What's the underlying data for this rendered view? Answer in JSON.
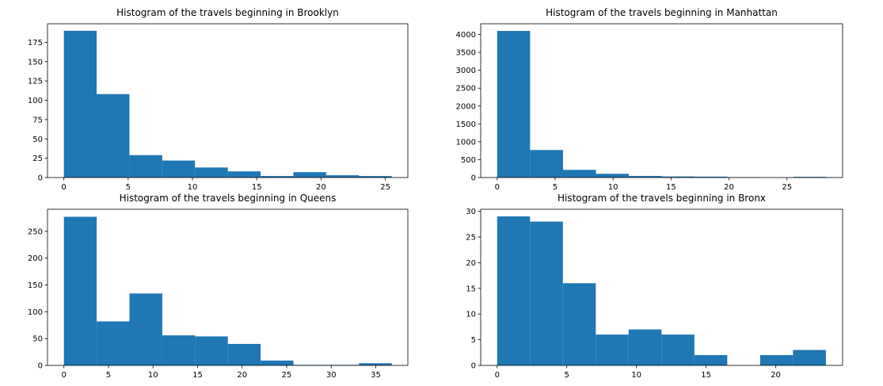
{
  "chart_data": [
    {
      "type": "bar",
      "title": "Histogram of the travels beginning in Brooklyn",
      "xlabel": "",
      "ylabel": "",
      "xlim": [
        -1.27,
        26.75
      ],
      "ylim": [
        0,
        199
      ],
      "xticks": [
        0,
        5,
        10,
        15,
        20,
        25
      ],
      "yticks": [
        0,
        25,
        50,
        75,
        100,
        125,
        150,
        175
      ],
      "bin_edges": [
        0,
        2.55,
        5.1,
        7.65,
        10.2,
        12.75,
        15.3,
        17.85,
        20.4,
        22.95,
        25.5
      ],
      "values": [
        190,
        108,
        29,
        22,
        13,
        8,
        2,
        7,
        3,
        2
      ],
      "color": "#1f77b4",
      "grid": false
    },
    {
      "type": "bar",
      "title": "Histogram of the travels beginning in Manhattan",
      "xlabel": "",
      "ylabel": "",
      "xlim": [
        -1.42,
        29.8
      ],
      "ylim": [
        0,
        4300
      ],
      "xticks": [
        0,
        5,
        10,
        15,
        20,
        25
      ],
      "yticks": [
        0,
        500,
        1000,
        1500,
        2000,
        2500,
        3000,
        3500,
        4000
      ],
      "bin_edges": [
        0,
        2.84,
        5.68,
        8.52,
        11.36,
        14.2,
        17.04,
        19.88,
        22.72,
        25.56,
        28.4
      ],
      "values": [
        4100,
        770,
        215,
        105,
        45,
        30,
        25,
        10,
        0,
        20
      ],
      "color": "#1f77b4",
      "grid": false
    },
    {
      "type": "bar",
      "title": "Histogram of the travels beginning in Queens",
      "xlabel": "",
      "ylabel": "",
      "xlim": [
        -1.84,
        38.6
      ],
      "ylim": [
        0,
        291
      ],
      "xticks": [
        0,
        5,
        10,
        15,
        20,
        25,
        30,
        35
      ],
      "yticks": [
        0,
        50,
        100,
        150,
        200,
        250
      ],
      "bin_edges": [
        0,
        3.68,
        7.36,
        11.04,
        14.72,
        18.4,
        22.08,
        25.76,
        29.44,
        33.12,
        36.8
      ],
      "values": [
        277,
        82,
        134,
        56,
        54,
        40,
        9,
        1,
        1,
        4
      ],
      "color": "#1f77b4",
      "grid": false
    },
    {
      "type": "bar",
      "title": "Histogram of the travels beginning in Bronx",
      "xlabel": "",
      "ylabel": "",
      "xlim": [
        -1.18,
        24.8
      ],
      "ylim": [
        0,
        30.4
      ],
      "xticks": [
        0,
        5,
        10,
        15,
        20
      ],
      "yticks": [
        0,
        5,
        10,
        15,
        20,
        25,
        30
      ],
      "bin_edges": [
        0,
        2.36,
        4.72,
        7.08,
        9.44,
        11.8,
        14.16,
        16.52,
        18.88,
        21.24,
        23.6
      ],
      "values": [
        29,
        28,
        16,
        6,
        7,
        6,
        2,
        0,
        2,
        3
      ],
      "color": "#1f77b4",
      "grid": false
    }
  ]
}
